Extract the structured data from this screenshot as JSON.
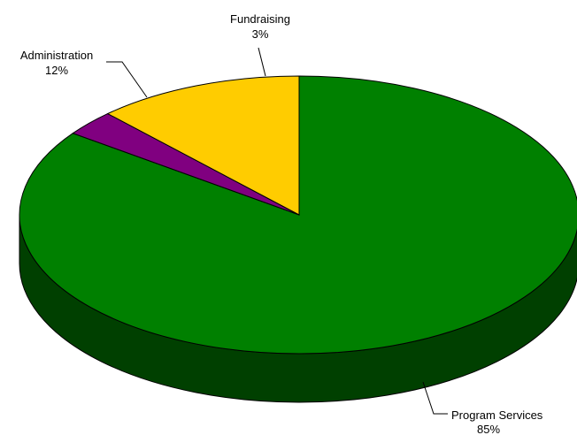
{
  "chart_data": {
    "type": "pie",
    "style": "3d",
    "title": "",
    "slices": [
      {
        "label": "Program Services",
        "value": 85,
        "display": "85%",
        "color": "#008000",
        "side_color": "#004000"
      },
      {
        "label": "Fundraising",
        "value": 3,
        "display": "3%",
        "color": "#800080",
        "side_color": "#400040"
      },
      {
        "label": "Administration",
        "value": 12,
        "display": "12%",
        "color": "#ffcc00",
        "side_color": "#806600"
      }
    ]
  }
}
